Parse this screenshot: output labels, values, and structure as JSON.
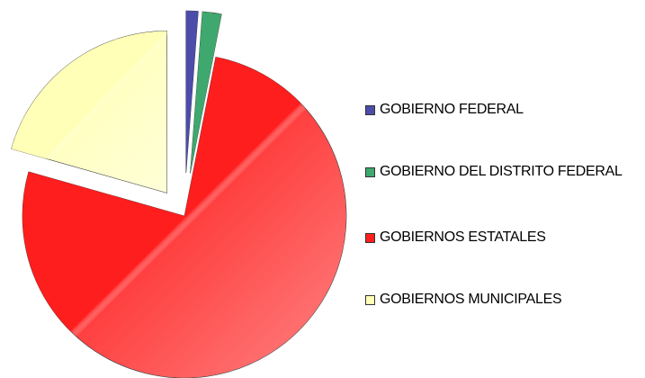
{
  "chart_data": {
    "type": "pie",
    "categories": [
      "GOBIERNO FEDERAL",
      "GOBIERNO DEL DISTRITO FEDERAL",
      "GOBIERNOS ESTATALES",
      "GOBIERNOS MUNICIPALES"
    ],
    "values": [
      1.2,
      1.9,
      76.3,
      20.6
    ],
    "colors": [
      "#4c4caa",
      "#3fa86e",
      "#ff1e1e",
      "#ffffb8"
    ],
    "legend": "right"
  }
}
